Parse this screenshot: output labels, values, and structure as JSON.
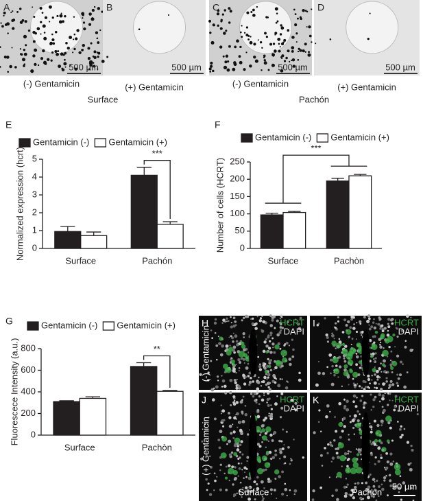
{
  "photos": [
    {
      "letter": "A",
      "scale": "500 µm",
      "condition": "(-) Gentamicin"
    },
    {
      "letter": "B",
      "scale": "500 µm",
      "condition": "(+) Gentamicin"
    },
    {
      "letter": "C",
      "scale": "500 µm",
      "condition": "(-) Gentamicin"
    },
    {
      "letter": "D",
      "scale": "500 µm",
      "condition": "(+) Gentamicin"
    }
  ],
  "photo_groups": [
    "Surface",
    "Pachón"
  ],
  "chart_data": [
    {
      "type": "bar",
      "letter": "E",
      "y_label": "Normalized expression (hcrt)",
      "categories": [
        "Surface",
        "Pachón"
      ],
      "series": [
        {
          "name": "Gentamicin (-)",
          "color": "#231f20",
          "values": [
            0.95,
            4.1
          ],
          "errors": [
            0.28,
            0.45
          ]
        },
        {
          "name": "Gentamicin (+)",
          "color": "#ffffff",
          "values": [
            0.72,
            1.35
          ],
          "errors": [
            0.2,
            0.15
          ]
        }
      ],
      "ylim": [
        0,
        5
      ],
      "yticks": [
        0,
        1,
        2,
        3,
        4,
        5
      ],
      "annotation": "***"
    },
    {
      "type": "bar",
      "letter": "F",
      "y_label": "Number of cells (HCRT)",
      "categories": [
        "Surface",
        "Pachòn"
      ],
      "series": [
        {
          "name": "Gentamicin (-)",
          "color": "#231f20",
          "values": [
            97,
            195
          ],
          "errors": [
            5,
            8
          ]
        },
        {
          "name": "Gentamicin (+)",
          "color": "#ffffff",
          "values": [
            104,
            210
          ],
          "errors": [
            3,
            4
          ]
        }
      ],
      "ylim": [
        0,
        250
      ],
      "yticks": [
        0,
        50,
        100,
        150,
        200,
        250
      ],
      "annotation": "***"
    },
    {
      "type": "bar",
      "letter": "G",
      "y_label": "Fluorescece Intensity (a.u.)",
      "categories": [
        "Surface",
        "Pachòn"
      ],
      "series": [
        {
          "name": "Gentamicin (-)",
          "color": "#231f20",
          "values": [
            310,
            635
          ],
          "errors": [
            8,
            35
          ]
        },
        {
          "name": "Gentamicin (+)",
          "color": "#ffffff",
          "values": [
            340,
            405
          ],
          "errors": [
            15,
            8
          ]
        }
      ],
      "ylim": [
        0,
        800
      ],
      "yticks": [
        0,
        200,
        400,
        600,
        800
      ],
      "annotation": "**"
    }
  ],
  "micrographs": {
    "panels": [
      {
        "letter": "H",
        "label_1": "HCRT",
        "label_2": "DAPI"
      },
      {
        "letter": "I",
        "label_1": "HCRT",
        "label_2": "DAPI"
      },
      {
        "letter": "J",
        "label_1": "HCRT",
        "label_2": "DAPI"
      },
      {
        "letter": "K",
        "label_1": "HCRT",
        "label_2": "DAPI"
      }
    ],
    "row_labels": [
      "(-) Gentamicin",
      "(+) Gentamicin"
    ],
    "column_labels": [
      "Surface",
      "Pachón"
    ],
    "scale": "50 µm"
  }
}
